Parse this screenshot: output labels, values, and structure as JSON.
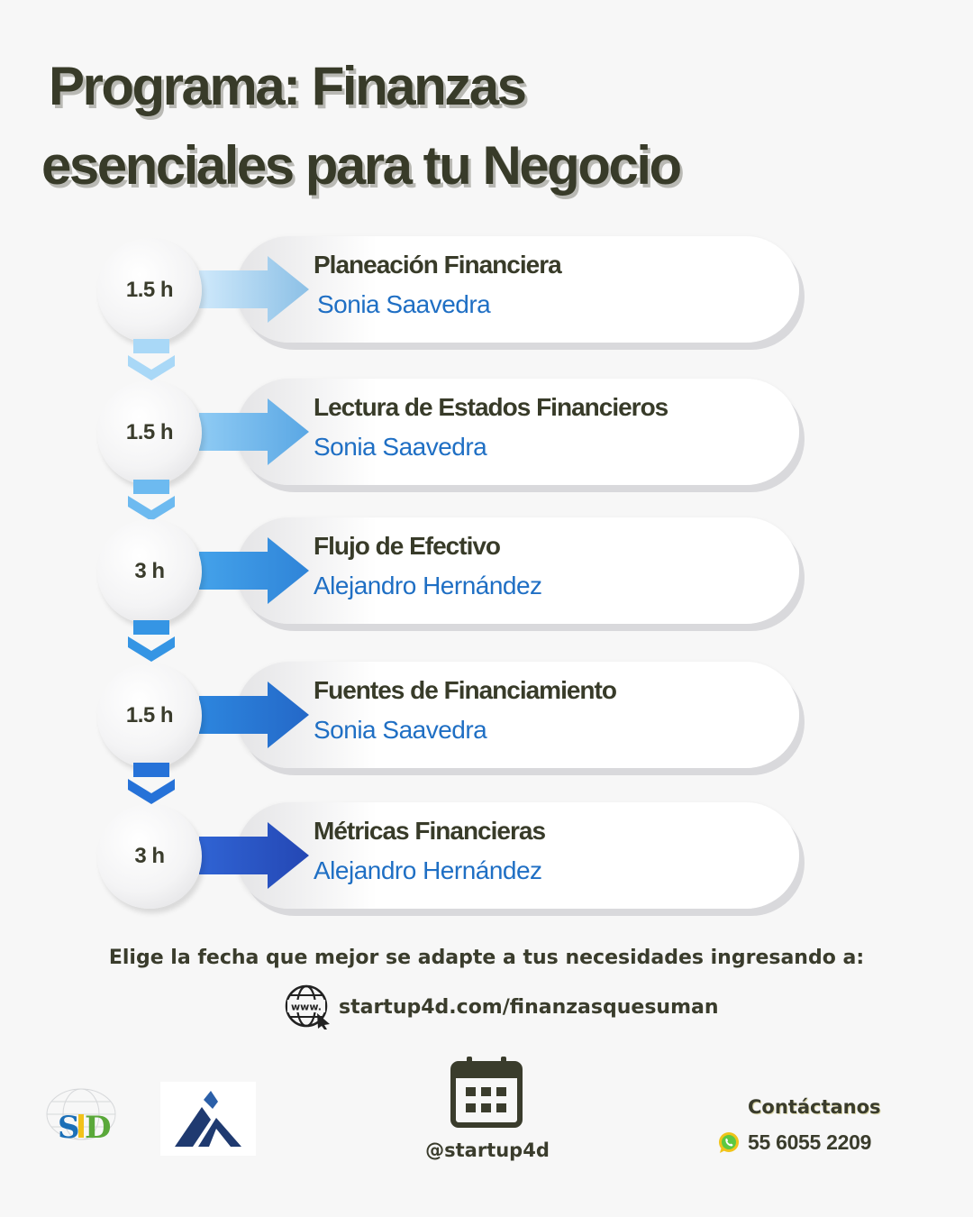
{
  "title": {
    "line1": "Programa: Finanzas",
    "line2": "esenciales para tu Negocio"
  },
  "sessions": [
    {
      "duration": "1.5 h",
      "title": "Planeación Financiera",
      "instructor": "Sonia Saavedra",
      "arrow_color": "#bfe1f8"
    },
    {
      "duration": "1.5 h",
      "title": "Lectura de Estados Financieros",
      "instructor": "Sonia Saavedra",
      "arrow_color": "#7fc3f2"
    },
    {
      "duration": "3 h",
      "title": "Flujo de Efectivo",
      "instructor": "Alejandro Hernández",
      "arrow_color": "#3a9ae6"
    },
    {
      "duration": "1.5 h",
      "title": "Fuentes de Financiamiento",
      "instructor": "Sonia Saavedra",
      "arrow_color": "#2a80dc"
    },
    {
      "duration": "3 h",
      "title": "Métricas Financieras",
      "instructor": "Alejandro Hernández",
      "arrow_color": "#2e5fd0"
    }
  ],
  "connector_colors": [
    "#9fd2f5",
    "#5cb0ee",
    "#2f8ee0",
    "#2470d6"
  ],
  "cta": {
    "text": "Elige la fecha  que mejor se adapte a tus necesidades ingresando a:",
    "url": "startup4d.com/finanzasquesuman",
    "url_icon": "globe-www-icon"
  },
  "footer": {
    "logo_sid_text": "SID",
    "social_handle": "@startup4d",
    "contact_label": "Contáctanos",
    "phone": "55 6055 2209",
    "phone_icon": "whatsapp-icon"
  }
}
